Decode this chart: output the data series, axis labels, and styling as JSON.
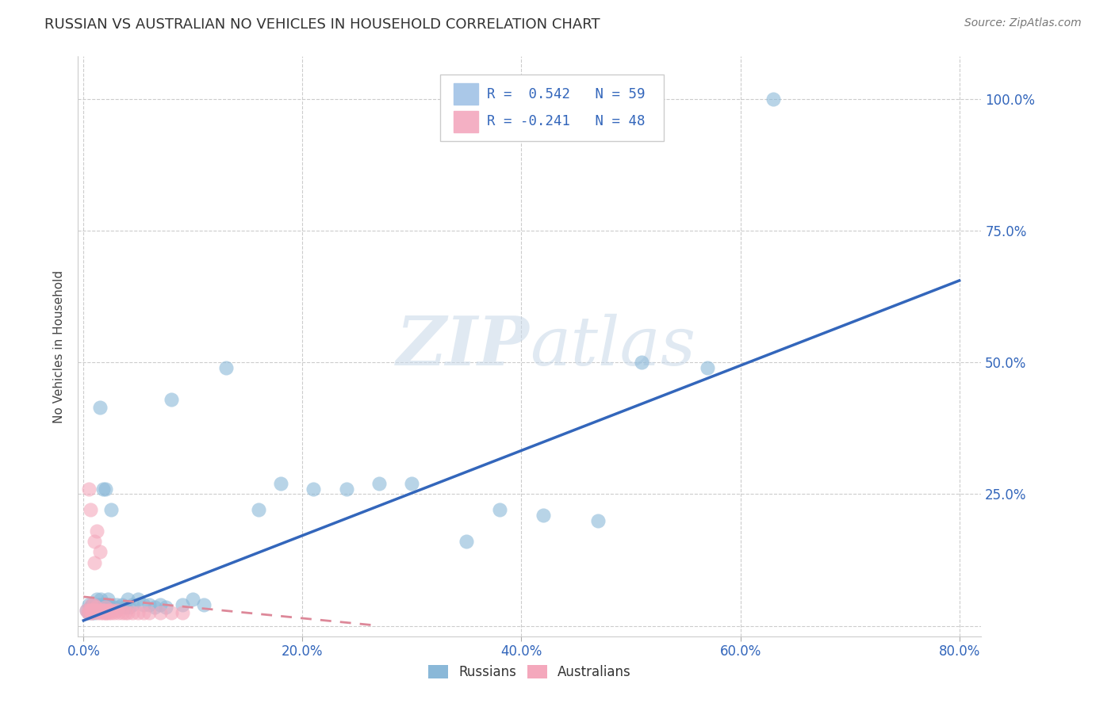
{
  "title": "RUSSIAN VS AUSTRALIAN NO VEHICLES IN HOUSEHOLD CORRELATION CHART",
  "source": "Source: ZipAtlas.com",
  "ylabel": "No Vehicles in Household",
  "russian_R": 0.542,
  "russian_N": 59,
  "australian_R": -0.241,
  "australian_N": 48,
  "russian_color": "#8ab8d8",
  "australian_color": "#f4a8bc",
  "russian_line_color": "#3366bb",
  "australian_line_color": "#dd8899",
  "watermark_zip": "ZIP",
  "watermark_atlas": "atlas",
  "background_color": "#ffffff",
  "grid_color": "#cccccc",
  "russian_x": [
    0.003,
    0.005,
    0.005,
    0.006,
    0.007,
    0.008,
    0.008,
    0.009,
    0.01,
    0.01,
    0.012,
    0.012,
    0.013,
    0.014,
    0.015,
    0.015,
    0.016,
    0.017,
    0.018,
    0.018,
    0.019,
    0.02,
    0.02,
    0.021,
    0.022,
    0.023,
    0.025,
    0.027,
    0.03,
    0.032,
    0.035,
    0.038,
    0.04,
    0.042,
    0.045,
    0.05,
    0.055,
    0.06,
    0.065,
    0.07,
    0.075,
    0.08,
    0.09,
    0.1,
    0.11,
    0.13,
    0.16,
    0.18,
    0.21,
    0.24,
    0.27,
    0.3,
    0.35,
    0.38,
    0.42,
    0.47,
    0.51,
    0.57,
    0.63
  ],
  "russian_y": [
    0.03,
    0.04,
    0.025,
    0.035,
    0.03,
    0.04,
    0.025,
    0.035,
    0.04,
    0.025,
    0.05,
    0.03,
    0.04,
    0.035,
    0.04,
    0.415,
    0.05,
    0.03,
    0.035,
    0.26,
    0.04,
    0.035,
    0.26,
    0.04,
    0.05,
    0.04,
    0.22,
    0.035,
    0.04,
    0.035,
    0.04,
    0.035,
    0.05,
    0.035,
    0.04,
    0.05,
    0.04,
    0.04,
    0.035,
    0.04,
    0.035,
    0.43,
    0.04,
    0.05,
    0.04,
    0.49,
    0.22,
    0.27,
    0.26,
    0.26,
    0.27,
    0.27,
    0.16,
    0.22,
    0.21,
    0.2,
    0.5,
    0.49,
    1.0
  ],
  "australian_x": [
    0.003,
    0.004,
    0.005,
    0.005,
    0.006,
    0.006,
    0.007,
    0.007,
    0.008,
    0.008,
    0.009,
    0.009,
    0.01,
    0.01,
    0.01,
    0.011,
    0.012,
    0.012,
    0.013,
    0.014,
    0.015,
    0.015,
    0.016,
    0.017,
    0.018,
    0.018,
    0.019,
    0.02,
    0.02,
    0.021,
    0.022,
    0.023,
    0.024,
    0.025,
    0.026,
    0.028,
    0.03,
    0.032,
    0.035,
    0.038,
    0.04,
    0.045,
    0.05,
    0.055,
    0.06,
    0.07,
    0.08,
    0.09
  ],
  "australian_y": [
    0.03,
    0.025,
    0.26,
    0.03,
    0.22,
    0.03,
    0.025,
    0.04,
    0.03,
    0.025,
    0.03,
    0.04,
    0.16,
    0.12,
    0.03,
    0.035,
    0.18,
    0.03,
    0.025,
    0.03,
    0.14,
    0.03,
    0.025,
    0.03,
    0.03,
    0.025,
    0.03,
    0.025,
    0.035,
    0.025,
    0.03,
    0.025,
    0.03,
    0.025,
    0.03,
    0.025,
    0.03,
    0.025,
    0.025,
    0.025,
    0.025,
    0.025,
    0.025,
    0.025,
    0.025,
    0.025,
    0.025,
    0.025
  ],
  "xlim": [
    -0.005,
    0.82
  ],
  "ylim": [
    -0.02,
    1.08
  ],
  "xticks": [
    0.0,
    0.2,
    0.4,
    0.6,
    0.8
  ],
  "xtick_labels": [
    "0.0%",
    "20.0%",
    "40.0%",
    "60.0%",
    "80.0%"
  ],
  "yticks": [
    0.0,
    0.25,
    0.5,
    0.75,
    1.0
  ],
  "ytick_labels": [
    "",
    "25.0%",
    "50.0%",
    "75.0%",
    "100.0%"
  ],
  "russian_line_x": [
    0.0,
    0.8
  ],
  "russian_line_y": [
    0.01,
    0.655
  ],
  "australian_line_x": [
    0.0,
    0.27
  ],
  "australian_line_y": [
    0.055,
    0.0
  ]
}
